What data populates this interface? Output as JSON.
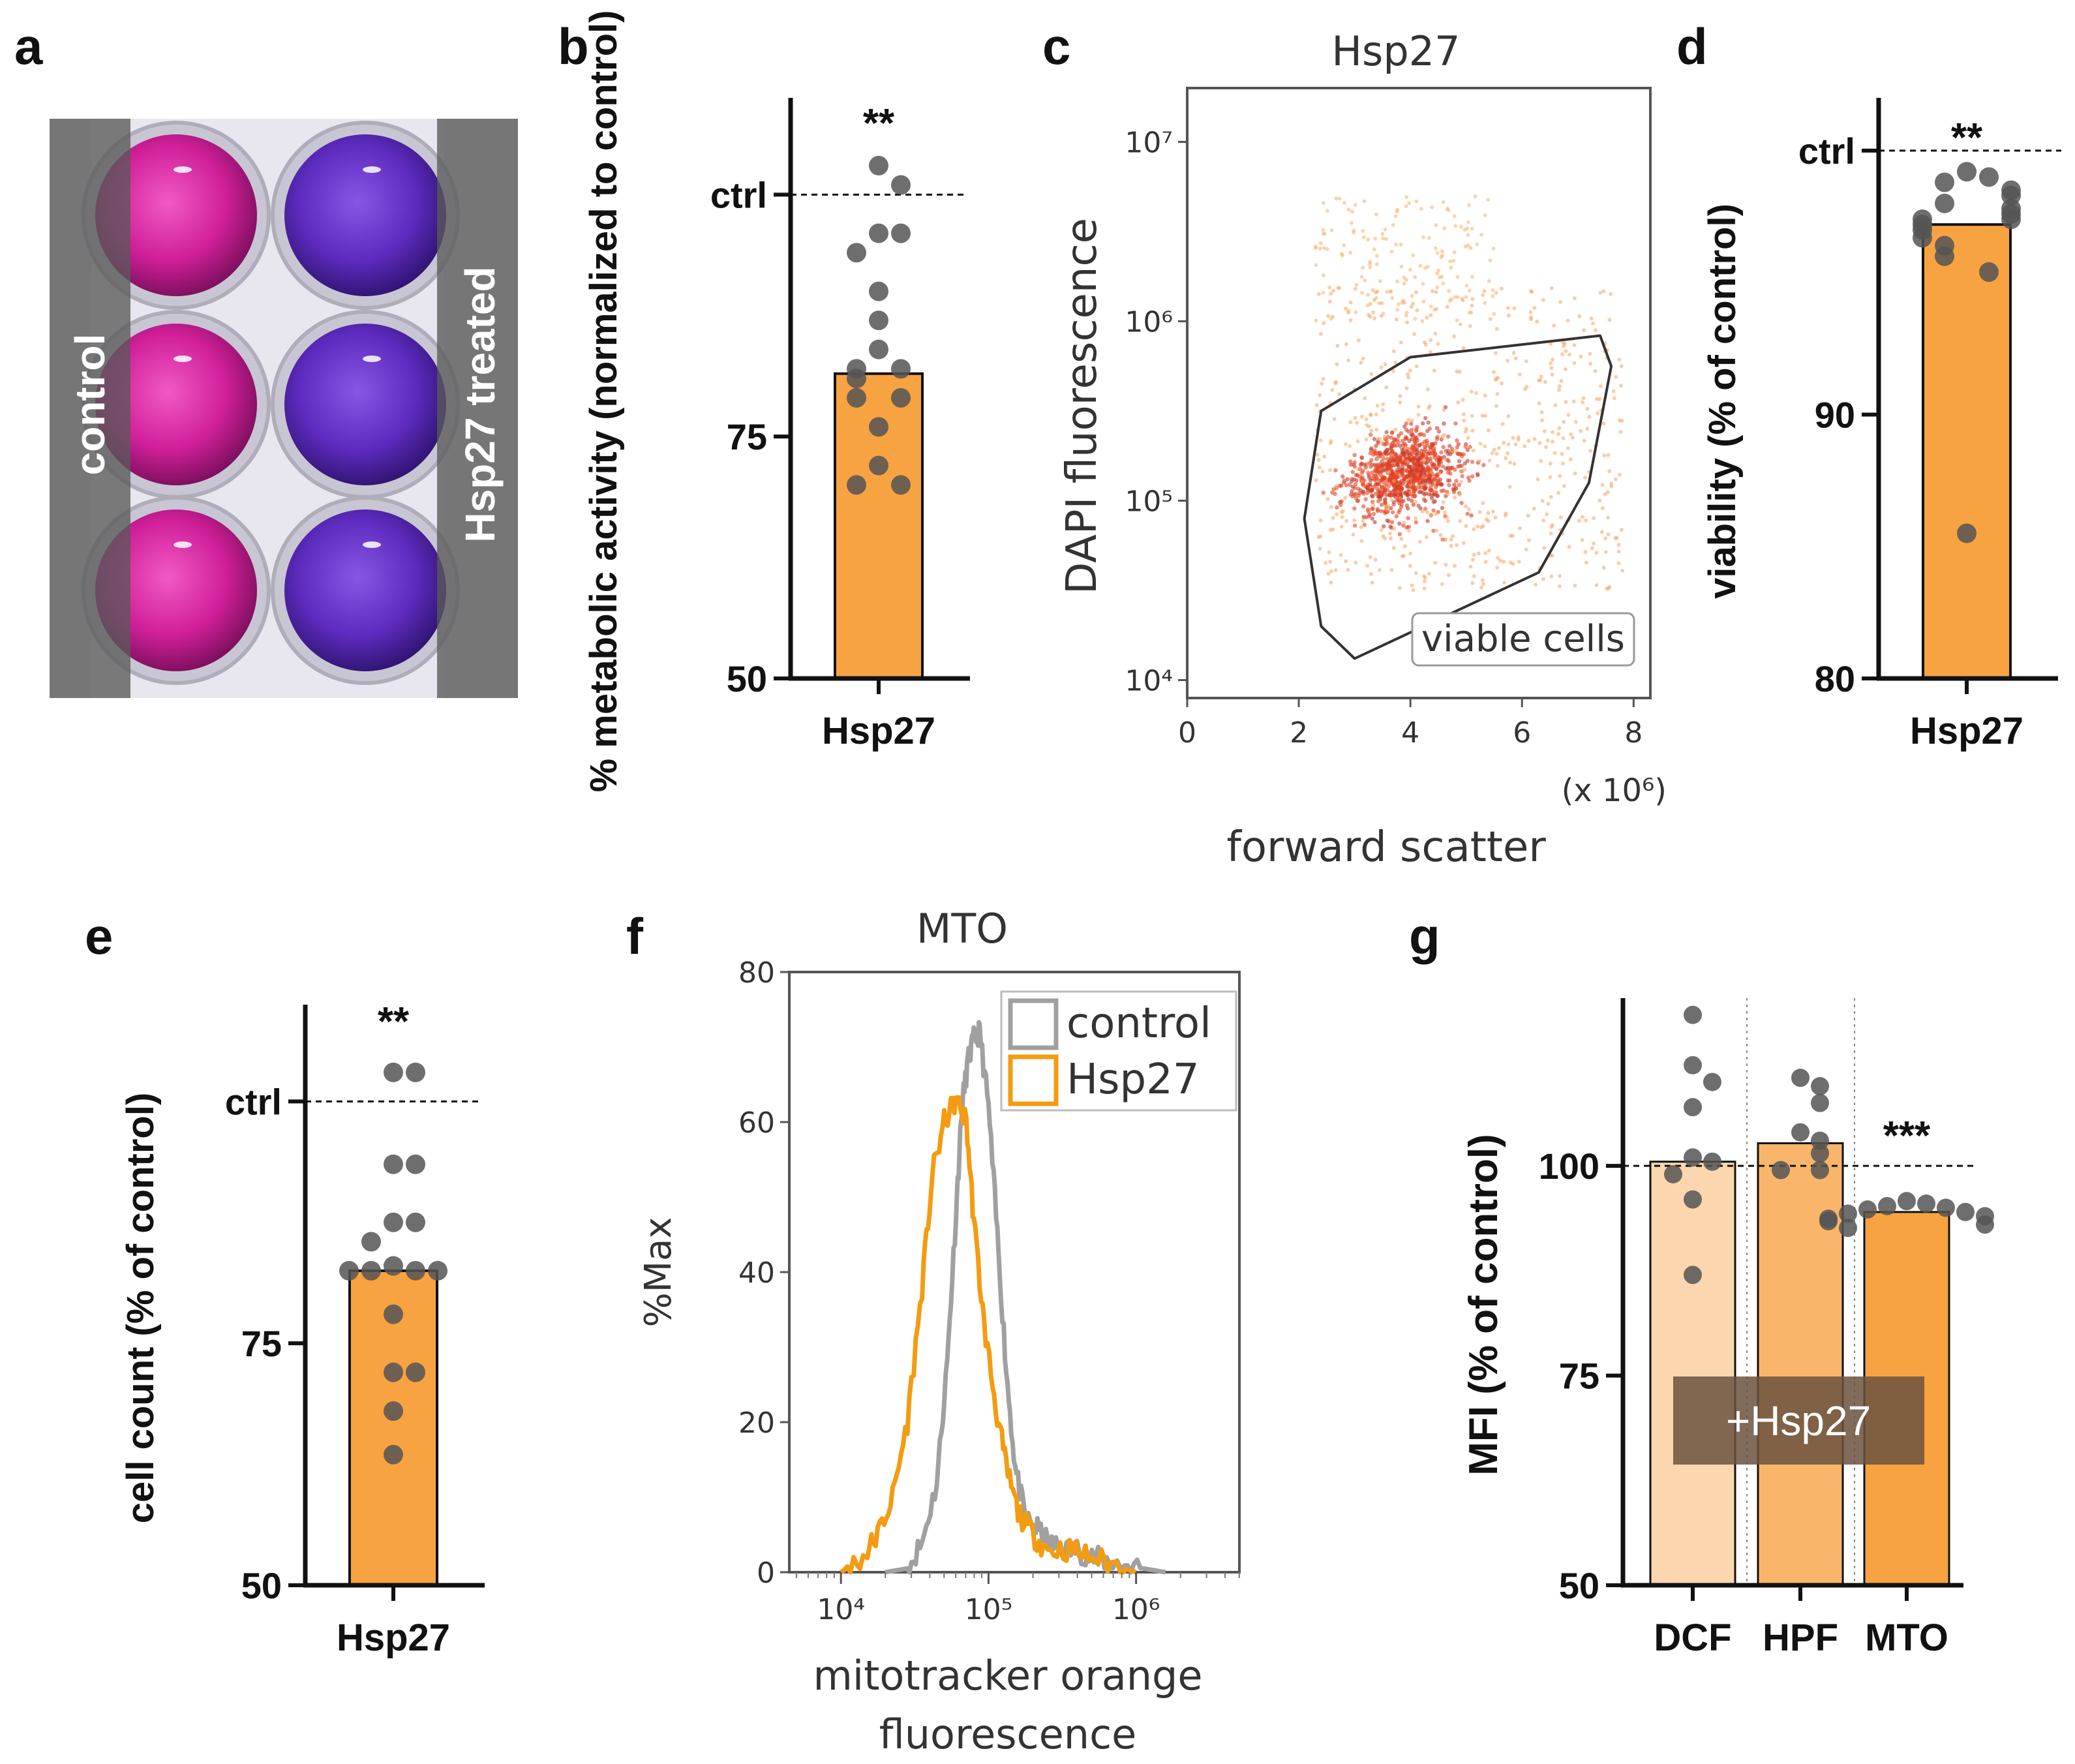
{
  "panels": {
    "a": {
      "letter": "a",
      "left_label": "control",
      "right_label": "Hsp27 treated"
    },
    "b": {
      "letter": "b"
    },
    "c": {
      "letter": "c"
    },
    "d": {
      "letter": "d"
    },
    "e": {
      "letter": "e"
    },
    "f": {
      "letter": "f"
    },
    "g": {
      "letter": "g"
    }
  },
  "colors": {
    "bar_orange": "#f7a342",
    "bar_light": "#fcd6ae",
    "bar_mid": "#f9b66a",
    "dot": "#555555",
    "control_line": "#a0a0a0",
    "hsp_line": "#f39c12",
    "well_control": "#d6249f",
    "well_treated": "#6a32c8"
  },
  "chart_data": [
    {
      "id": "b",
      "type": "bar",
      "title": "",
      "ylabel": "% metabolic activity (normalized to control)",
      "ylim": [
        50,
        110
      ],
      "yticks": [
        50,
        75
      ],
      "ctrl_label": "ctrl",
      "ctrl_value": 100,
      "categories": [
        "Hsp27"
      ],
      "values": [
        81.5
      ],
      "significance": "**",
      "points": [
        103,
        101,
        96,
        96,
        94,
        90,
        87,
        84,
        82,
        82,
        81,
        79,
        79,
        76,
        72,
        70,
        70
      ]
    },
    {
      "id": "c",
      "type": "scatter",
      "title": "Hsp27",
      "xlabel": "forward scatter",
      "xunit": "(x 10⁶)",
      "ylabel": "DAPI fluorescence",
      "xlim": [
        0,
        8.3
      ],
      "xticks": [
        "0",
        "2",
        "4",
        "6",
        "8"
      ],
      "ylim_log10": [
        3.9,
        7.3
      ],
      "yticks": [
        "10⁴",
        "10⁵",
        "10⁶",
        "10⁷"
      ],
      "gate_label": "viable cells",
      "gate": [
        [
          2.4,
          5.5
        ],
        [
          4.0,
          5.8
        ],
        [
          7.4,
          5.92
        ],
        [
          7.6,
          5.75
        ],
        [
          7.2,
          5.1
        ],
        [
          6.3,
          4.6
        ],
        [
          3.0,
          4.12
        ],
        [
          2.4,
          4.3
        ],
        [
          2.1,
          4.9
        ]
      ]
    },
    {
      "id": "d",
      "type": "bar",
      "title": "",
      "ylabel": "viability (% of control)",
      "ylim": [
        80,
        102
      ],
      "yticks": [
        80,
        90
      ],
      "ctrl_label": "ctrl",
      "ctrl_value": 100,
      "categories": [
        "Hsp27"
      ],
      "values": [
        97.2
      ],
      "significance": "**",
      "points": [
        99.2,
        99,
        98.8,
        98.5,
        98.3,
        98,
        97.8,
        97.6,
        97.4,
        97.4,
        97.2,
        97,
        96.7,
        96.4,
        96,
        95.4,
        85.5
      ]
    },
    {
      "id": "e",
      "type": "bar",
      "title": "",
      "ylabel": "cell count (% of control)",
      "ylim": [
        50,
        110
      ],
      "yticks": [
        50,
        75
      ],
      "ctrl_label": "ctrl",
      "ctrl_value": 100,
      "categories": [
        "Hsp27"
      ],
      "values": [
        82.5
      ],
      "significance": "**",
      "points": [
        103,
        103,
        93.5,
        93.5,
        87.5,
        87.5,
        85.5,
        83,
        82.5,
        82.5,
        82.5,
        82.5,
        78,
        72,
        72,
        68,
        63.5
      ]
    },
    {
      "id": "f",
      "type": "line",
      "title": "MTO",
      "xlabel": "mitotracker orange fluorescence",
      "ylabel": "%Max",
      "xlim_log10": [
        3.65,
        6.7
      ],
      "xticks": [
        "10⁴",
        "10⁵",
        "10⁶"
      ],
      "ylim": [
        0,
        80
      ],
      "yticks": [
        0,
        20,
        40,
        60,
        80
      ],
      "legend": [
        "control",
        "Hsp27"
      ],
      "series": [
        {
          "name": "control",
          "x": [
            4.3,
            4.45,
            4.55,
            4.65,
            4.72,
            4.78,
            4.82,
            4.86,
            4.9,
            4.94,
            5.0,
            5.06,
            5.12,
            5.18,
            5.25,
            5.32,
            5.4,
            5.5,
            5.6,
            5.7,
            5.8,
            5.9,
            6.05,
            6.2
          ],
          "y": [
            0,
            0.5,
            4,
            12,
            28,
            48,
            62,
            68,
            71,
            72,
            62,
            45,
            27,
            14,
            7,
            6,
            4,
            3,
            3,
            2,
            1.5,
            1,
            0.5,
            0
          ]
        },
        {
          "name": "Hsp27",
          "x": [
            4.0,
            4.15,
            4.25,
            4.35,
            4.45,
            4.55,
            4.62,
            4.7,
            4.78,
            4.85,
            4.9,
            4.97,
            5.05,
            5.12,
            5.2,
            5.3,
            5.4,
            5.55,
            5.7,
            5.85,
            6.0
          ],
          "y": [
            0,
            2,
            5,
            10,
            20,
            38,
            53,
            60,
            63,
            60,
            47,
            33,
            22,
            14,
            8,
            5,
            3,
            3,
            2,
            1,
            0
          ]
        }
      ]
    },
    {
      "id": "g",
      "type": "bar",
      "title": "",
      "ylabel": "MFI (% of control)",
      "ylim": [
        50,
        120
      ],
      "yticks": [
        50,
        75,
        100
      ],
      "ctrl_value": 100,
      "categories": [
        "DCF",
        "HPF",
        "MTO"
      ],
      "values": [
        100.5,
        102.7,
        94.5
      ],
      "significance": [
        "",
        "",
        "***"
      ],
      "annotation": "+Hsp27",
      "points": [
        [
          118,
          112,
          110,
          107,
          101,
          100.5,
          99,
          96,
          87
        ],
        [
          110.5,
          109.5,
          107.5,
          104,
          103,
          101.5,
          99.5,
          99.5
        ],
        [
          95.8,
          95.5,
          95.2,
          95,
          94.8,
          94.5,
          94.3,
          94,
          93.7,
          93.4,
          93,
          92.6
        ]
      ]
    }
  ]
}
